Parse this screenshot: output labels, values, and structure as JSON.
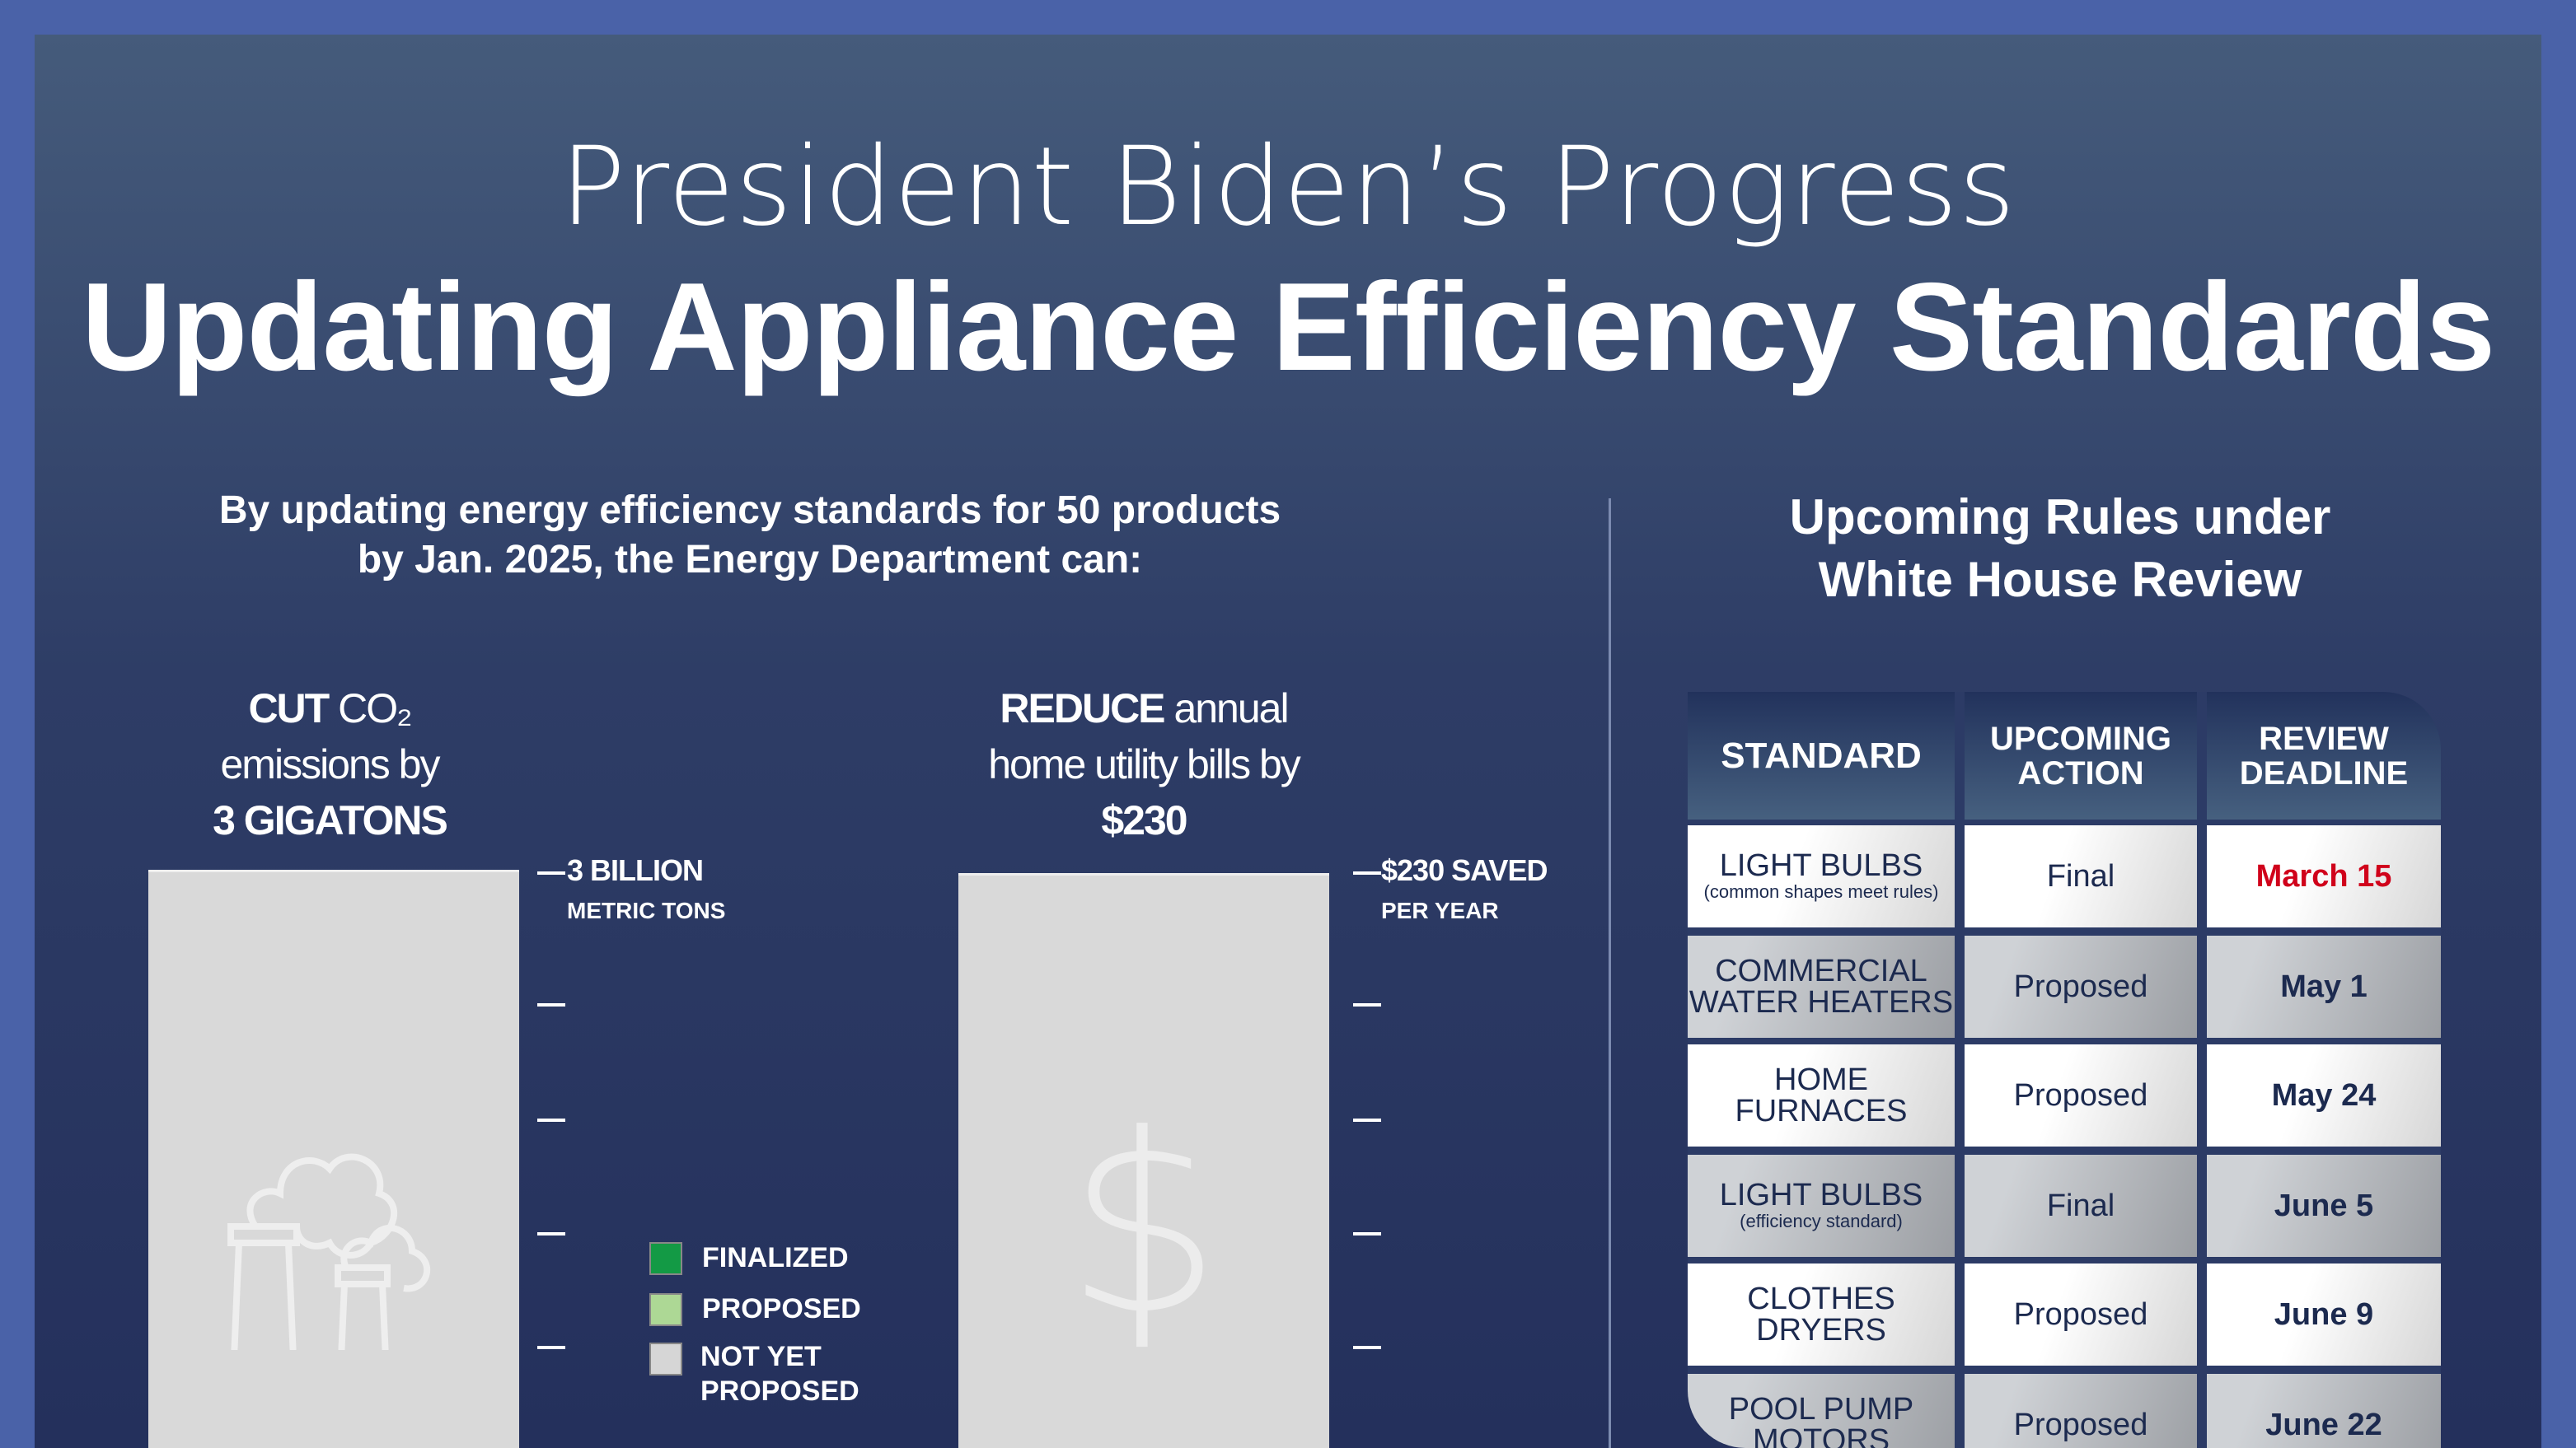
{
  "title": {
    "line1": "President Biden’s Progress",
    "line2": "Updating Appliance Efficiency Standards"
  },
  "intro": {
    "line1": "By updating energy efficiency standards for 50 products",
    "line2": "by Jan. 2025, the Energy Department can:"
  },
  "co2": {
    "lead": "CUT",
    "rest": "CO₂",
    "line2": "emissions by",
    "line3": "3 GIGATONS",
    "top_label": "3 BILLION",
    "top_unit": "METRIC TONS"
  },
  "bills": {
    "lead": "REDUCE",
    "rest": "annual",
    "line2": "home utility bills by",
    "line3": "$230",
    "top_label": "$230 SAVED",
    "top_unit": "PER YEAR",
    "icon": "$"
  },
  "legend": [
    {
      "label": "FINALIZED",
      "color": "#139a45"
    },
    {
      "label": "PROPOSED",
      "color": "#add895"
    },
    {
      "label_1": "NOT YET",
      "label_2": "PROPOSED",
      "color": "#d6d6d6"
    }
  ],
  "review": {
    "heading1": "Upcoming Rules under",
    "heading2": "White House Review",
    "headers": {
      "standard": "STANDARD",
      "action_1": "UPCOMING",
      "action_2": "ACTION",
      "deadline_1": "REVIEW",
      "deadline_2": "DEADLINE"
    },
    "rows": [
      {
        "s1": "LIGHT BULBS",
        "s2": "(common shapes meet rules)",
        "action": "Final",
        "deadline": "March 15"
      },
      {
        "s1": "COMMERCIAL",
        "s2": "WATER HEATERS",
        "action": "Proposed",
        "deadline": "May 1"
      },
      {
        "s1": "HOME",
        "s2": "FURNACES",
        "action": "Proposed",
        "deadline": "May 24"
      },
      {
        "s1": "LIGHT BULBS",
        "s2": "(efficiency standard)",
        "action": "Final",
        "deadline": "June 5"
      },
      {
        "s1": "CLOTHES",
        "s2": "DRYERS",
        "action": "Proposed",
        "deadline": "June 9"
      },
      {
        "s1": "POOL PUMP",
        "s2": "MOTORS",
        "action": "Proposed",
        "deadline": "June 22"
      }
    ],
    "highlight_color": "#d0021b"
  }
}
